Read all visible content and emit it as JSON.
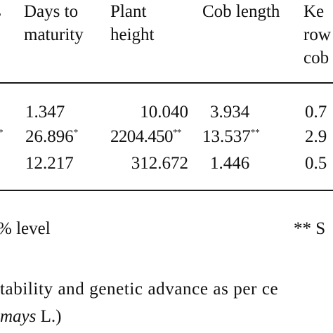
{
  "table": {
    "header": {
      "left_fragment": "s",
      "days_to_maturity": [
        "Days to",
        "maturity"
      ],
      "plant_height": [
        "Plant",
        "height"
      ],
      "cob_length": "Cob length",
      "kernel_rows": [
        "Ke",
        "row",
        "cob"
      ]
    },
    "rows": [
      {
        "left_fragment": "",
        "left_sup": "",
        "days": "1.347",
        "days_sup": "",
        "height": "10.040",
        "height_sup": "",
        "cob": "3.934",
        "cob_sup": "",
        "kernel": "0.7"
      },
      {
        "left_fragment": "",
        "left_sup": "*",
        "days": "26.896",
        "days_sup": "*",
        "height": "2204.450",
        "height_sup": "**",
        "cob": "13.537",
        "cob_sup": "**",
        "kernel": "2.9"
      },
      {
        "left_fragment": "",
        "left_sup": "",
        "days": "12.217",
        "days_sup": "",
        "height": "312.672",
        "height_sup": "",
        "cob": "1.446",
        "cob_sup": "",
        "kernel": "0.5"
      }
    ],
    "footnote_left": "% level",
    "footnote_right": "** S"
  },
  "caption": {
    "line1": "tability and genetic advance as per ce",
    "line2_italic": "mays",
    "line2_rest": " L.)"
  }
}
